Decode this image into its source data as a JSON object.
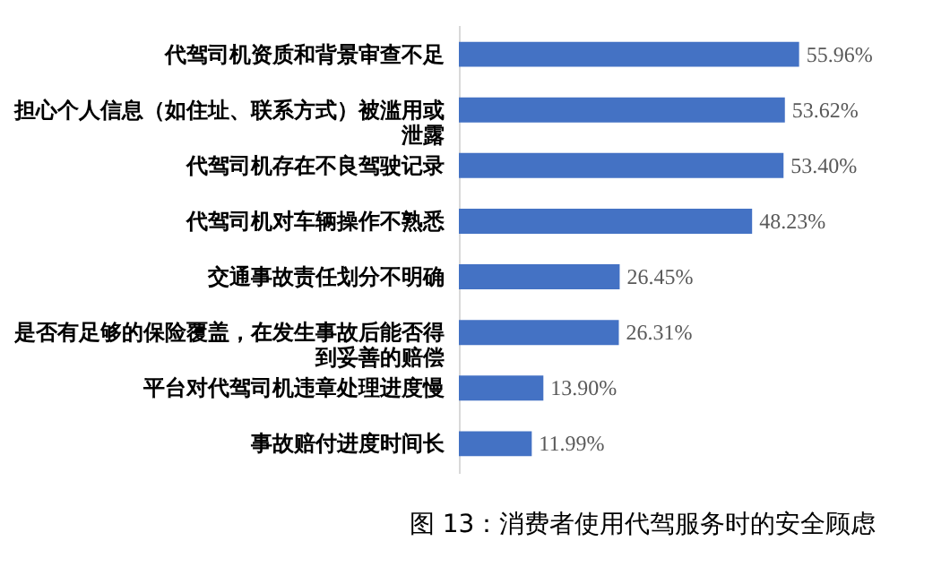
{
  "chart_data": {
    "type": "bar",
    "orientation": "horizontal",
    "title": "图 13：消费者使用代驾服务时的安全顾虑",
    "categories": [
      "代驾司机资质和背景审查不足",
      "担心个人信息（如住址、联系方式）被滥用或泄露",
      "代驾司机存在不良驾驶记录",
      "代驾司机对车辆操作不熟悉",
      "交通事故责任划分不明确",
      "是否有足够的保险覆盖，在发生事故后能否得到妥善的赔偿",
      "平台对代驾司机违章处理进度慢",
      "事故赔付进度时间长"
    ],
    "values": [
      55.96,
      53.62,
      53.4,
      48.23,
      26.45,
      26.31,
      13.9,
      11.99
    ],
    "value_labels": [
      "55.96%",
      "53.62%",
      "53.40%",
      "48.23%",
      "26.45%",
      "26.31%",
      "13.90%",
      "11.99%"
    ],
    "color": "#4472c4",
    "grid": false
  }
}
